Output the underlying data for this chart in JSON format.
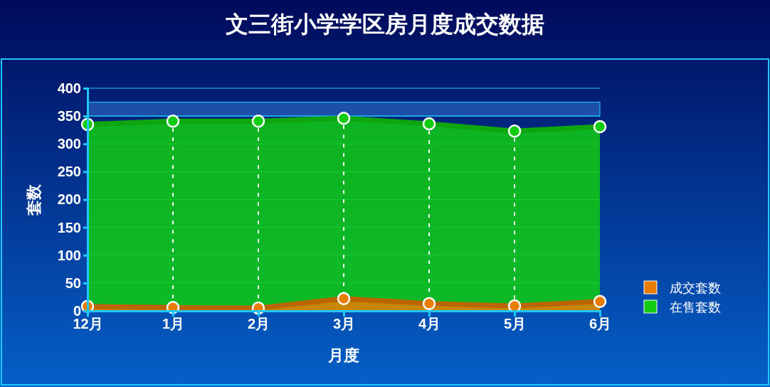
{
  "chart_data": {
    "type": "area",
    "title": "文三街小学学区房月度成交数据",
    "xlabel": "月度",
    "ylabel": "套数",
    "categories": [
      "12月",
      "1月",
      "2月",
      "3月",
      "4月",
      "5月",
      "6月"
    ],
    "series": [
      {
        "name": "在售套数",
        "color": "#11cc11",
        "values": [
          335,
          341,
          341,
          346,
          336,
          323,
          331
        ]
      },
      {
        "name": "成交套数",
        "color": "#e87d00",
        "values": [
          8,
          6,
          5,
          22,
          13,
          9,
          17
        ]
      }
    ],
    "ylim": [
      0,
      400
    ],
    "yticks": [
      0,
      50,
      100,
      150,
      200,
      250,
      300,
      350,
      400
    ],
    "bands": [
      {
        "axis": "y",
        "from": 350,
        "to": 375,
        "color": "#1e4fa8"
      }
    ],
    "grid": true,
    "legend": "right",
    "marker": "circle"
  }
}
